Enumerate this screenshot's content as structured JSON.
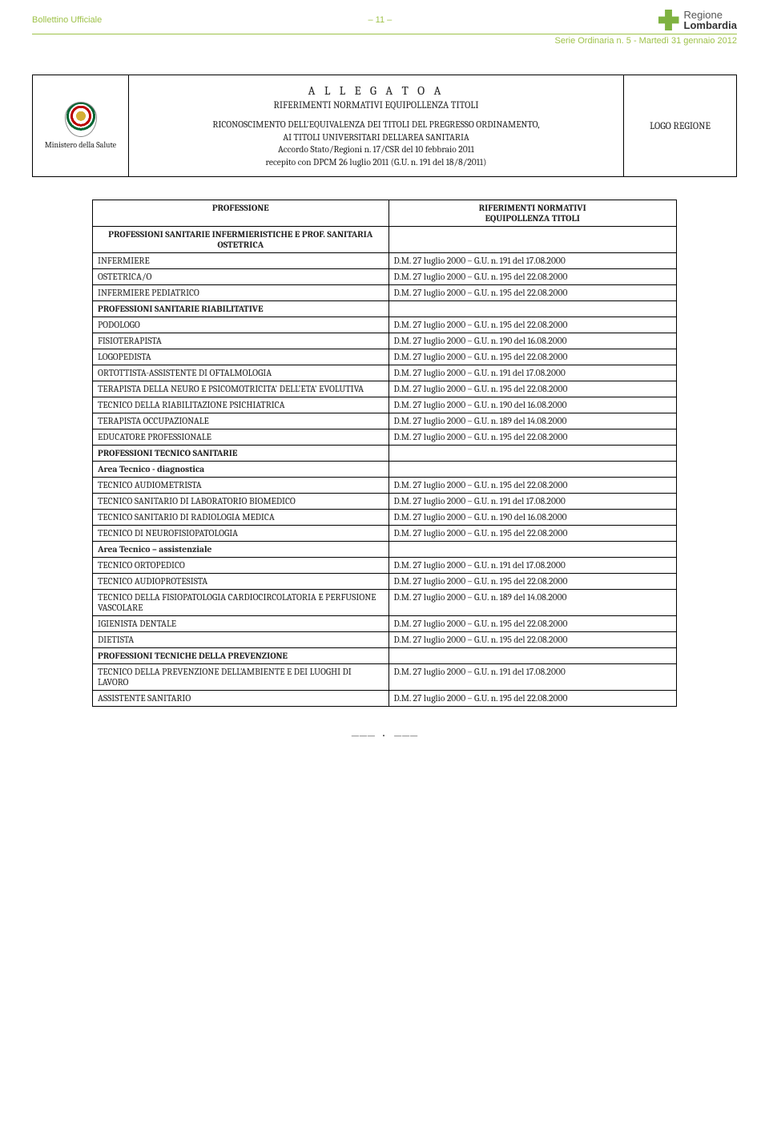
{
  "header": {
    "top_left": "Bollettino Ufficiale",
    "page_marker": "– 11 –",
    "logo_line1": "Regione",
    "logo_line2": "Lombardia",
    "subhead": "Serie Ordinaria n. 5 - Martedì 31 gennaio 2012"
  },
  "box": {
    "ministry": "Ministero della Salute",
    "title_spaced": "A L L E G A T O   A",
    "subtitle": "RIFERIMENTI NORMATIVI EQUIPOLLENZA TITOLI",
    "body_l1": "RICONOSCIMENTO DELL'EQUIVALENZA DEI TITOLI DEL PREGRESSO ORDINAMENTO,",
    "body_l2": "AI TITOLI UNIVERSITARI DELL'AREA SANITARIA",
    "body_l3": "Accordo Stato/Regioni n. 17/CSR del 10 febbraio 2011",
    "body_l4": "recepito con DPCM 26 luglio 2011 (G.U. n. 191 del 18/8/2011)",
    "right": "LOGO REGIONE"
  },
  "table": {
    "head_left": "PROFESSIONE",
    "head_right_l1": "RIFERIMENTI NORMATIVI",
    "head_right_l2": "EQUIPOLLENZA TITOLI",
    "sec1": "PROFESSIONI SANITARIE INFERMIERISTICHE E PROF. SANITARIA OSTETRICA",
    "rows1": [
      [
        "INFERMIERE",
        "D.M. 27 luglio 2000 – G.U. n. 191 del 17.08.2000"
      ],
      [
        "OSTETRICA/O",
        "D.M. 27 luglio 2000 – G.U. n. 195 del 22.08.2000"
      ],
      [
        "INFERMIERE PEDIATRICO",
        "D.M. 27 luglio 2000 – G.U. n. 195 del 22.08.2000"
      ]
    ],
    "sec2": "PROFESSIONI SANITARIE RIABILITATIVE",
    "rows2": [
      [
        "PODOLOGO",
        "D.M. 27 luglio 2000 – G.U. n. 195 del 22.08.2000"
      ],
      [
        "FISIOTERAPISTA",
        "D.M. 27 luglio 2000 – G.U. n. 190 del 16.08.2000"
      ],
      [
        "LOGOPEDISTA",
        "D.M. 27 luglio 2000 – G.U. n. 195 del 22.08.2000"
      ],
      [
        "ORTOTTISTA-ASSISTENTE DI OFTALMOLOGIA",
        "D.M. 27 luglio 2000 – G.U. n. 191 del 17.08.2000"
      ],
      [
        "TERAPISTA DELLA NEURO E PSICOMOTRICITA' DELL'ETA' EVOLUTIVA",
        "D.M. 27 luglio 2000 – G.U. n. 195 del 22.08.2000"
      ],
      [
        "TECNICO DELLA RIABILITAZIONE PSICHIATRICA",
        "D.M. 27 luglio 2000 – G.U. n. 190 del 16.08.2000"
      ],
      [
        "TERAPISTA OCCUPAZIONALE",
        "D.M. 27 luglio 2000 – G.U. n. 189 del 14.08.2000"
      ],
      [
        "EDUCATORE PROFESSIONALE",
        "D.M. 27 luglio 2000 – G.U. n. 195 del 22.08.2000"
      ]
    ],
    "sec3": "PROFESSIONI TECNICO SANITARIE",
    "sec3a": "Area Tecnico - diagnostica",
    "rows3a": [
      [
        "TECNICO AUDIOMETRISTA",
        "D.M. 27 luglio 2000 – G.U. n. 195 del 22.08.2000"
      ],
      [
        "TECNICO SANITARIO DI LABORATORIO BIOMEDICO",
        "D.M. 27 luglio 2000 – G.U. n. 191 del 17.08.2000"
      ],
      [
        "TECNICO SANITARIO DI RADIOLOGIA MEDICA",
        "D.M. 27 luglio 2000 – G.U. n. 190 del 16.08.2000"
      ],
      [
        "TECNICO DI NEUROFISIOPATOLOGIA",
        "D.M. 27 luglio 2000 – G.U. n. 195 del 22.08.2000"
      ]
    ],
    "sec3b": "Area Tecnico – assistenziale",
    "rows3b": [
      [
        "TECNICO ORTOPEDICO",
        "D.M. 27 luglio 2000 – G.U. n. 191 del 17.08.2000"
      ],
      [
        "TECNICO AUDIOPROTESISTA",
        "D.M. 27 luglio 2000 – G.U. n. 195 del 22.08.2000"
      ],
      [
        "TECNICO DELLA FISIOPATOLOGIA CARDIOCIRCOLATORIA E PERFUSIONE VASCOLARE",
        "D.M. 27 luglio 2000 – G.U. n. 189 del 14.08.2000"
      ],
      [
        "IGIENISTA DENTALE",
        "D.M. 27 luglio 2000 – G.U. n. 195 del 22.08.2000"
      ],
      [
        "DIETISTA",
        "D.M. 27 luglio 2000 – G.U. n. 195 del 22.08.2000"
      ]
    ],
    "sec4": "PROFESSIONI TECNICHE DELLA PREVENZIONE",
    "rows4": [
      [
        "TECNICO DELLA PREVENZIONE DELL'AMBIENTE E DEI LUOGHI DI LAVORO",
        "D.M. 27 luglio 2000 – G.U. n. 191 del 17.08.2000"
      ],
      [
        "ASSISTENTE SANITARIO",
        "D.M. 27 luglio 2000 – G.U. n. 195 del 22.08.2000"
      ]
    ]
  },
  "colors": {
    "accent": "#9fc24a",
    "logo_green": "#7fb241",
    "text": "#222222",
    "border": "#000000"
  }
}
